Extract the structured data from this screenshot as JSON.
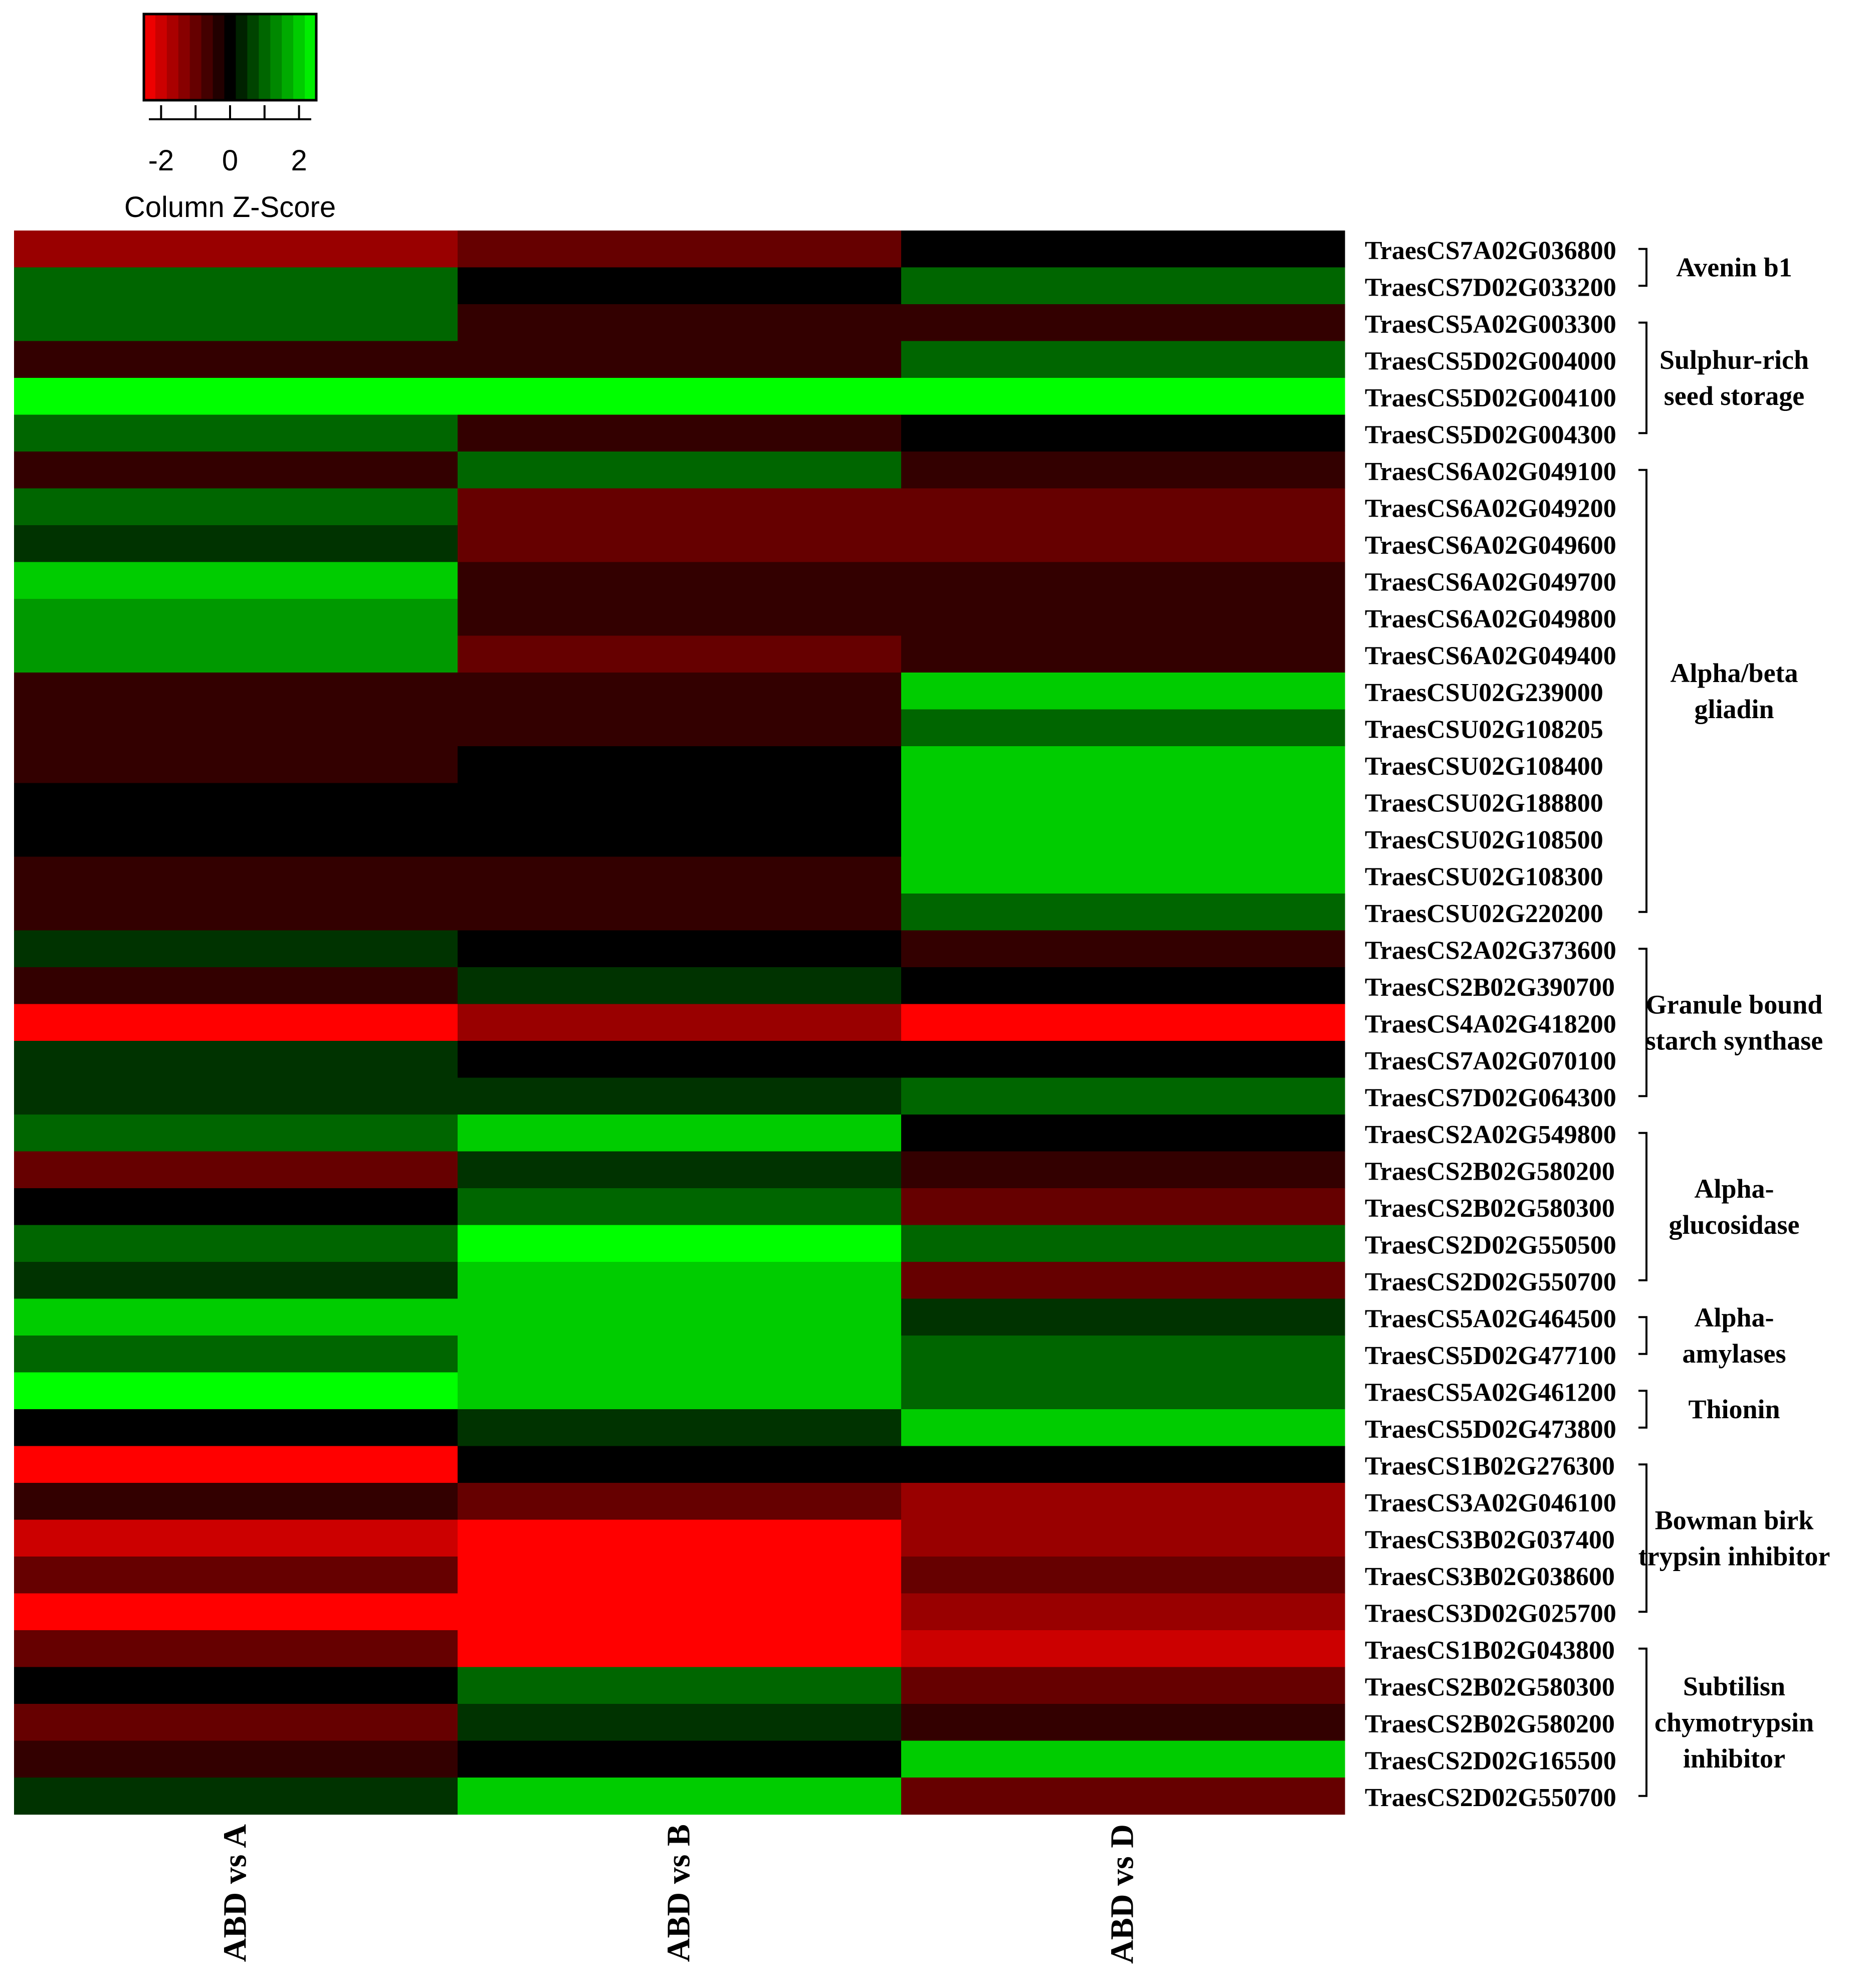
{
  "chart_data": {
    "type": "heatmap",
    "title": "",
    "color_key": {
      "title": "Column Z-Score",
      "ticks": [
        "-2",
        "0",
        "2"
      ],
      "tick_values": [
        -2,
        0,
        2
      ],
      "range": [
        -2.5,
        2.5
      ],
      "low_color": "#ff0000",
      "mid_color": "#000000",
      "high_color": "#00ff00"
    },
    "columns": [
      "ABD vs A",
      "ABD vs B",
      "ABD vs D"
    ],
    "rows": [
      "TraesCS7A02G036800",
      "TraesCS7D02G033200",
      "TraesCS5A02G003300",
      "TraesCS5D02G004000",
      "TraesCS5D02G004100",
      "TraesCS5D02G004300",
      "TraesCS6A02G049100",
      "TraesCS6A02G049200",
      "TraesCS6A02G049600",
      "TraesCS6A02G049700",
      "TraesCS6A02G049800",
      "TraesCS6A02G049400",
      "TraesCSU02G239000",
      "TraesCSU02G108205",
      "TraesCSU02G108400",
      "TraesCSU02G188800",
      "TraesCSU02G108500",
      "TraesCSU02G108300",
      "TraesCSU02G220200",
      "TraesCS2A02G373600",
      "TraesCS2B02G390700",
      "TraesCS4A02G418200",
      "TraesCS7A02G070100",
      "TraesCS7D02G064300",
      "TraesCS2A02G549800",
      "TraesCS2B02G580200",
      "TraesCS2B02G580300",
      "TraesCS2D02G550500",
      "TraesCS2D02G550700",
      "TraesCS5A02G464500",
      "TraesCS5D02G477100",
      "TraesCS5A02G461200",
      "TraesCS5D02G473800",
      "TraesCS1B02G276300",
      "TraesCS3A02G046100",
      "TraesCS3B02G037400",
      "TraesCS3B02G038600",
      "TraesCS3D02G025700",
      "TraesCS1B02G043800",
      "TraesCS2B02G580300",
      "TraesCS2B02G580200",
      "TraesCS2D02G165500",
      "TraesCS2D02G550700"
    ],
    "values": [
      [
        -1.5,
        -1.0,
        0.0
      ],
      [
        1.0,
        0.0,
        1.0
      ],
      [
        1.0,
        -0.5,
        -0.5
      ],
      [
        -0.5,
        -0.5,
        1.0
      ],
      [
        2.5,
        2.5,
        2.5
      ],
      [
        1.0,
        -0.5,
        0.0
      ],
      [
        -0.5,
        1.0,
        -0.5
      ],
      [
        1.0,
        -1.0,
        -1.0
      ],
      [
        0.5,
        -1.0,
        -1.0
      ],
      [
        2.0,
        -0.5,
        -0.5
      ],
      [
        1.5,
        -0.5,
        -0.5
      ],
      [
        1.5,
        -1.0,
        -0.5
      ],
      [
        -0.5,
        -0.5,
        2.0
      ],
      [
        -0.5,
        -0.5,
        1.0
      ],
      [
        -0.5,
        0.0,
        2.0
      ],
      [
        0.0,
        0.0,
        2.0
      ],
      [
        0.0,
        0.0,
        2.0
      ],
      [
        -0.5,
        -0.5,
        2.0
      ],
      [
        -0.5,
        -0.5,
        1.0
      ],
      [
        0.5,
        0.0,
        -0.5
      ],
      [
        -0.5,
        0.5,
        0.0
      ],
      [
        -2.5,
        -1.5,
        -2.5
      ],
      [
        0.5,
        0.0,
        0.0
      ],
      [
        0.5,
        0.5,
        1.0
      ],
      [
        1.0,
        2.0,
        0.0
      ],
      [
        -1.0,
        0.5,
        -0.5
      ],
      [
        0.0,
        1.0,
        -1.0
      ],
      [
        1.0,
        2.5,
        1.0
      ],
      [
        0.5,
        2.0,
        -1.0
      ],
      [
        2.0,
        2.0,
        0.5
      ],
      [
        1.0,
        2.0,
        1.0
      ],
      [
        2.5,
        2.0,
        1.0
      ],
      [
        0.0,
        0.5,
        2.0
      ],
      [
        -2.5,
        0.0,
        0.0
      ],
      [
        -0.5,
        -1.0,
        -1.5
      ],
      [
        -2.0,
        -2.5,
        -1.5
      ],
      [
        -1.0,
        -2.5,
        -1.0
      ],
      [
        -2.5,
        -2.5,
        -1.5
      ],
      [
        -1.0,
        -2.5,
        -2.0
      ],
      [
        0.0,
        1.0,
        -1.0
      ],
      [
        -1.0,
        0.5,
        -0.5
      ],
      [
        -0.5,
        0.0,
        2.0
      ],
      [
        0.5,
        2.0,
        -1.0
      ]
    ],
    "groups": [
      {
        "label": [
          "Avenin b1"
        ],
        "rows": [
          0,
          1
        ]
      },
      {
        "label": [
          "Sulphur-rich",
          "seed storage"
        ],
        "rows": [
          2,
          5
        ]
      },
      {
        "label": [
          "Alpha/beta",
          "gliadin"
        ],
        "rows": [
          6,
          18
        ]
      },
      {
        "label": [
          "Granule bound",
          "starch synthase"
        ],
        "rows": [
          19,
          23
        ]
      },
      {
        "label": [
          "Alpha-",
          "glucosidase"
        ],
        "rows": [
          24,
          28
        ]
      },
      {
        "label": [
          "Alpha-",
          "amylases"
        ],
        "rows": [
          29,
          30
        ]
      },
      {
        "label": [
          "Thionin"
        ],
        "rows": [
          31,
          32
        ]
      },
      {
        "label": [
          "Bowman birk",
          "trypsin inhibitor"
        ],
        "rows": [
          33,
          37
        ]
      },
      {
        "label": [
          "Subtilisn",
          "chymotrypsin",
          "inhibitor"
        ],
        "rows": [
          38,
          42
        ]
      }
    ]
  }
}
